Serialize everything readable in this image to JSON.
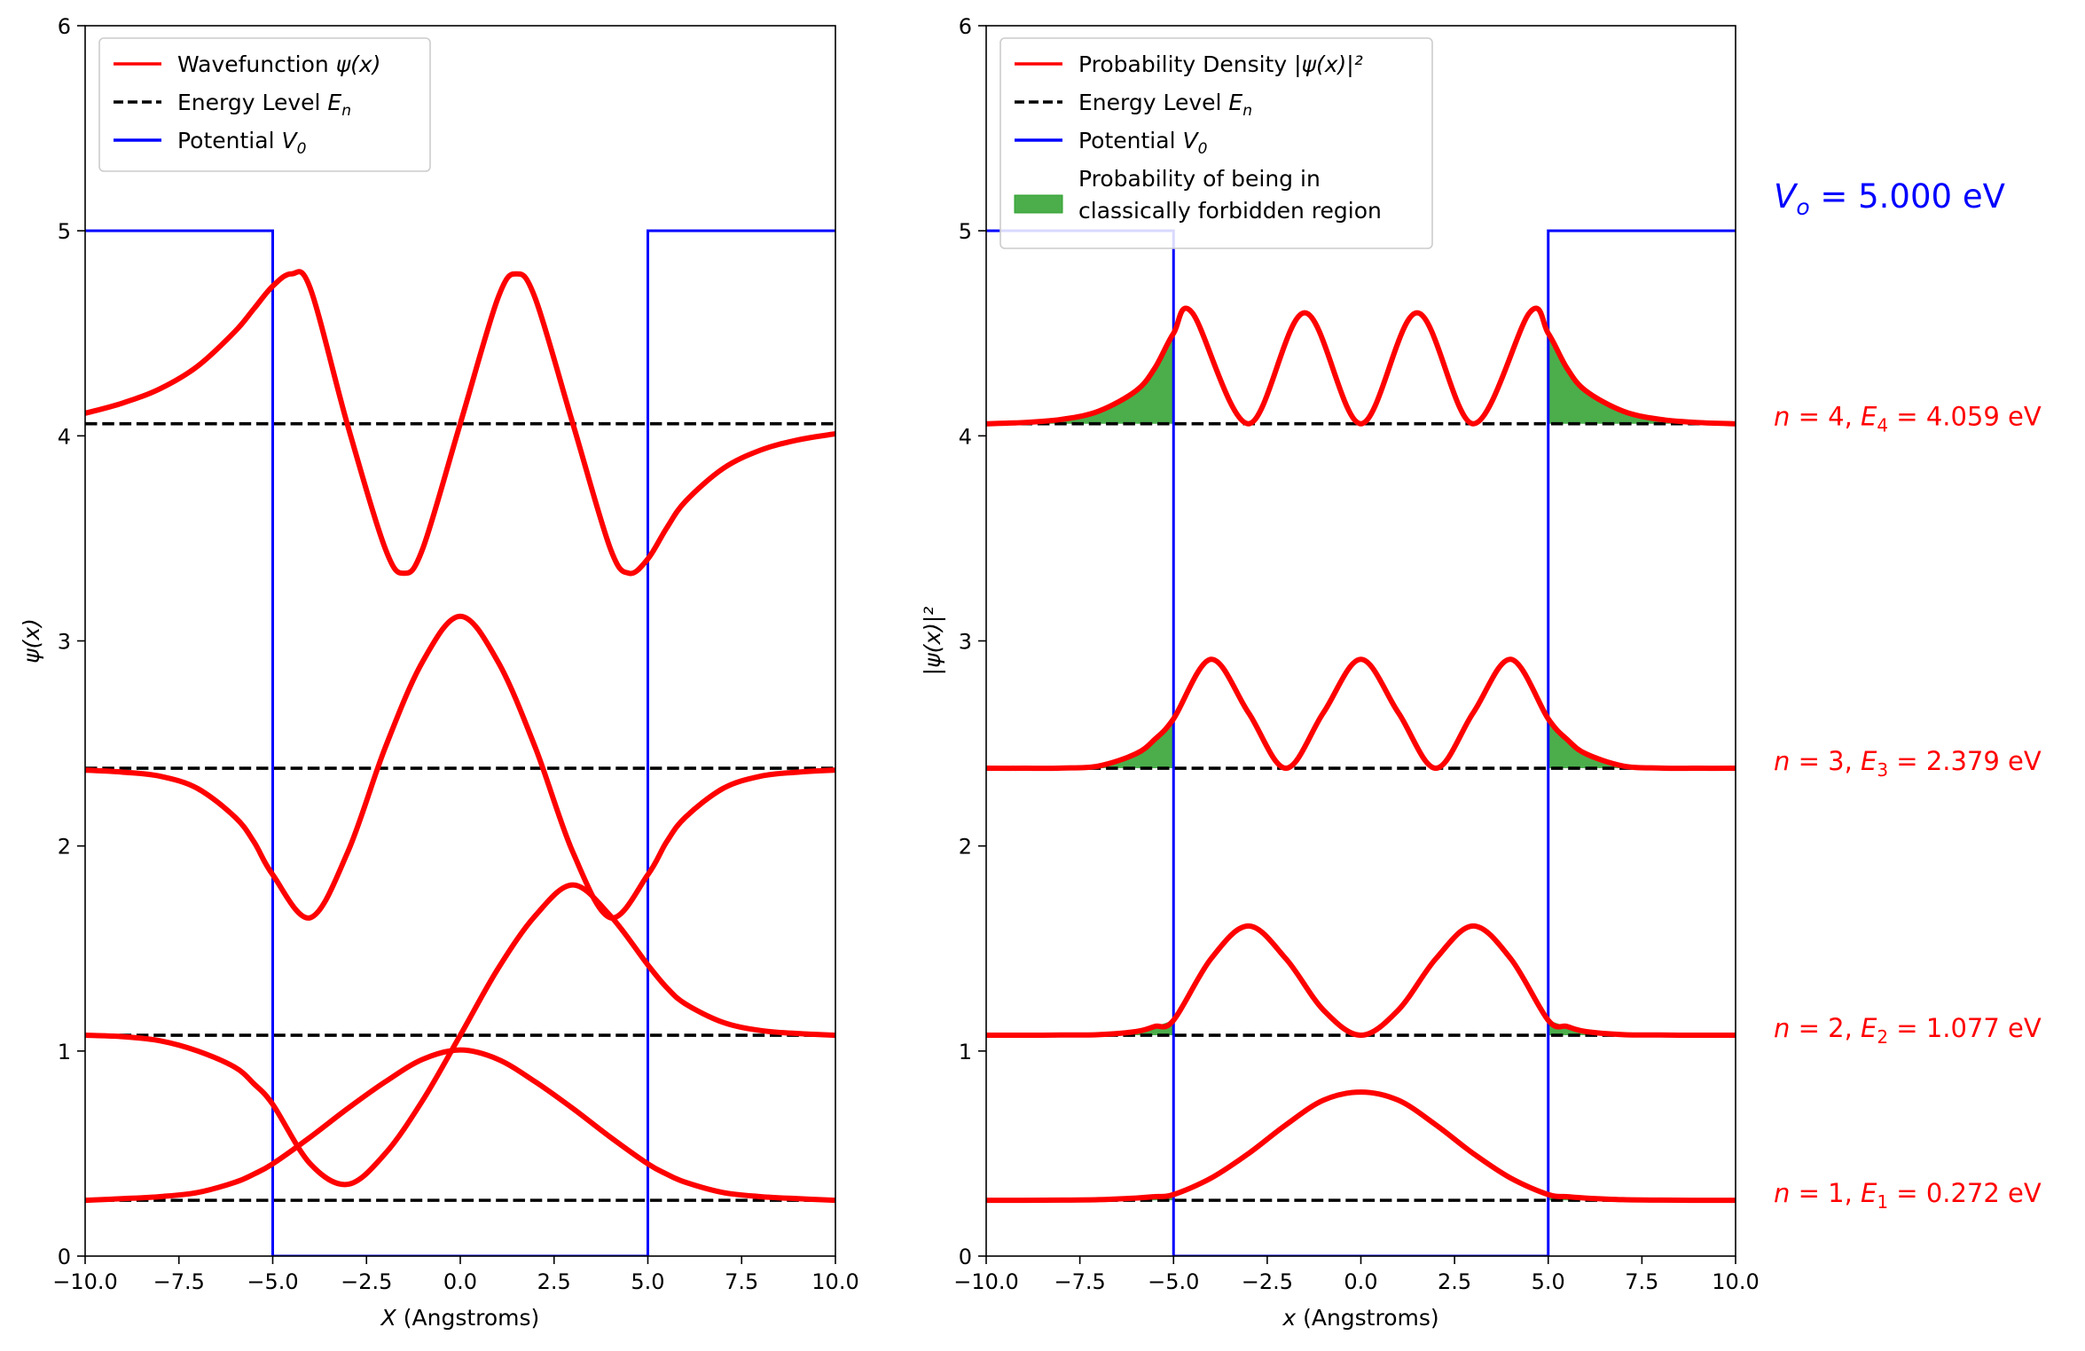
{
  "chart_data": [
    {
      "type": "line",
      "xlabel": "X (Angstroms)",
      "xlabel_italic": "X",
      "xlabel_rest": " (Angstroms)",
      "ylabel": "ψ(x)",
      "xlim": [
        -10,
        10
      ],
      "ylim": [
        0,
        6
      ],
      "xticks": [
        -10,
        -7.5,
        -5,
        -2.5,
        0,
        2.5,
        5,
        7.5,
        10
      ],
      "xtick_labels": [
        "−10.0",
        "−7.5",
        "−5.0",
        "−2.5",
        "0.0",
        "2.5",
        "5.0",
        "7.5",
        "10.0"
      ],
      "yticks": [
        0,
        1,
        2,
        3,
        4,
        5,
        6
      ],
      "ytick_labels": [
        "0",
        "1",
        "2",
        "3",
        "4",
        "5",
        "6"
      ],
      "legend": {
        "placement": "top-left",
        "entries": [
          {
            "label": "Wavefunction ψ(x)",
            "text": "Wavefunction ",
            "math": "ψ(x)",
            "style": "solid",
            "color": "#ff0000"
          },
          {
            "label": "Energy Level E_n",
            "text": "Energy Level ",
            "math": "E",
            "sub": "n",
            "style": "dashed",
            "color": "#000000"
          },
          {
            "label": "Potential V_0",
            "text": "Potential ",
            "math": "V",
            "sub": "0",
            "style": "solid",
            "color": "#0000ff"
          }
        ]
      },
      "potential": {
        "V0": 5.0,
        "well": [
          -5,
          5
        ],
        "color": "#0000ff"
      },
      "energy_levels": [
        0.272,
        1.077,
        2.379,
        4.059
      ],
      "series_color": "#ff0000",
      "series": [
        {
          "n": 1,
          "x": [
            -10,
            -9,
            -8,
            -7,
            -6,
            -5.5,
            -5,
            -4,
            -3,
            -2,
            -1,
            0,
            1,
            2,
            3,
            4,
            5,
            5.5,
            6,
            7,
            8,
            9,
            10
          ],
          "y": [
            0.272,
            0.28,
            0.29,
            0.31,
            0.36,
            0.4,
            0.45,
            0.58,
            0.72,
            0.85,
            0.96,
            1.005,
            0.96,
            0.85,
            0.72,
            0.58,
            0.45,
            0.4,
            0.36,
            0.31,
            0.29,
            0.28,
            0.272
          ]
        },
        {
          "n": 2,
          "x": [
            -10,
            -9,
            -8,
            -7,
            -6,
            -5.5,
            -5,
            -4,
            -3,
            -2,
            -1,
            0,
            1,
            2,
            3,
            4,
            5,
            5.5,
            6,
            7,
            8,
            9,
            10
          ],
          "y": [
            1.077,
            1.07,
            1.05,
            1.0,
            0.92,
            0.84,
            0.74,
            0.45,
            0.35,
            0.5,
            0.76,
            1.077,
            1.4,
            1.66,
            1.81,
            1.66,
            1.42,
            1.31,
            1.23,
            1.14,
            1.1,
            1.085,
            1.077
          ]
        },
        {
          "n": 3,
          "x": [
            -10,
            -9,
            -8,
            -7,
            -6,
            -5.5,
            -5,
            -4,
            -3,
            -2,
            -1,
            0,
            1,
            2,
            3,
            4,
            5,
            5.5,
            6,
            7,
            8,
            9,
            10
          ],
          "y": [
            2.37,
            2.36,
            2.34,
            2.28,
            2.14,
            2.02,
            1.86,
            1.65,
            1.97,
            2.48,
            2.9,
            3.12,
            2.9,
            2.48,
            1.97,
            1.65,
            1.86,
            2.02,
            2.14,
            2.28,
            2.34,
            2.36,
            2.37
          ]
        },
        {
          "n": 4,
          "x": [
            -10,
            -9,
            -8,
            -7,
            -6,
            -5.5,
            -5,
            -4.5,
            -4,
            -3,
            -2,
            -1.5,
            -1,
            0,
            1,
            1.5,
            2,
            3,
            4,
            4.5,
            5,
            5.5,
            6,
            7,
            8,
            9,
            10
          ],
          "y": [
            4.11,
            4.16,
            4.23,
            4.34,
            4.51,
            4.62,
            4.73,
            4.79,
            4.72,
            4.05,
            3.45,
            3.33,
            3.45,
            4.06,
            4.67,
            4.79,
            4.67,
            4.06,
            3.45,
            3.33,
            3.4,
            3.55,
            3.68,
            3.84,
            3.93,
            3.98,
            4.01
          ]
        }
      ]
    },
    {
      "type": "area",
      "xlabel": "x (Angstroms)",
      "xlabel_italic": "x",
      "xlabel_rest": " (Angstroms)",
      "ylabel": "|ψ(x)|²",
      "xlim": [
        -10,
        10
      ],
      "ylim": [
        0,
        6
      ],
      "xticks": [
        -10,
        -7.5,
        -5,
        -2.5,
        0,
        2.5,
        5,
        7.5,
        10
      ],
      "xtick_labels": [
        "−10.0",
        "−7.5",
        "−5.0",
        "−2.5",
        "0.0",
        "2.5",
        "5.0",
        "7.5",
        "10.0"
      ],
      "yticks": [
        0,
        1,
        2,
        3,
        4,
        5,
        6
      ],
      "ytick_labels": [
        "0",
        "1",
        "2",
        "3",
        "4",
        "5",
        "6"
      ],
      "legend": {
        "placement": "top-left",
        "entries": [
          {
            "label": "Probability Density |ψ(x)|²",
            "text": "Probability Density ",
            "math": "|ψ(x)|²",
            "style": "solid",
            "color": "#ff0000"
          },
          {
            "label": "Energy Level E_n",
            "text": "Energy Level ",
            "math": "E",
            "sub": "n",
            "style": "dashed",
            "color": "#000000"
          },
          {
            "label": "Potential V_0",
            "text": "Potential ",
            "math": "V",
            "sub": "0",
            "style": "solid",
            "color": "#0000ff"
          },
          {
            "label": "Probability of being in classically forbidden region",
            "text": "Probability of being in",
            "text2": "classically forbidden region",
            "style": "patch",
            "color": "#2ca02c"
          }
        ]
      },
      "potential": {
        "V0": 5.0,
        "well": [
          -5,
          5
        ],
        "color": "#0000ff"
      },
      "energy_levels": [
        0.272,
        1.077,
        2.379,
        4.059
      ],
      "series_color": "#ff0000",
      "fill_color": "#2ca02c",
      "series": [
        {
          "n": 1,
          "amplitude": 0.53,
          "x": [
            -10,
            -9,
            -8,
            -7,
            -6,
            -5.5,
            -5,
            -4,
            -3,
            -2,
            -1,
            0,
            1,
            2,
            3,
            4,
            5,
            5.5,
            6,
            7,
            8,
            9,
            10
          ],
          "y": [
            0.272,
            0.272,
            0.273,
            0.275,
            0.283,
            0.29,
            0.3,
            0.38,
            0.5,
            0.64,
            0.76,
            0.8,
            0.76,
            0.64,
            0.5,
            0.38,
            0.3,
            0.29,
            0.283,
            0.275,
            0.273,
            0.272,
            0.272
          ]
        },
        {
          "n": 2,
          "amplitude": 0.54,
          "x": [
            -10,
            -9,
            -8,
            -7,
            -6,
            -5.5,
            -5,
            -4,
            -3,
            -2,
            -1,
            0,
            1,
            2,
            3,
            4,
            5,
            5.5,
            6,
            7,
            8,
            9,
            10
          ],
          "y": [
            1.077,
            1.077,
            1.078,
            1.08,
            1.095,
            1.12,
            1.15,
            1.45,
            1.61,
            1.45,
            1.2,
            1.077,
            1.2,
            1.45,
            1.61,
            1.45,
            1.15,
            1.12,
            1.095,
            1.08,
            1.078,
            1.077,
            1.077
          ]
        },
        {
          "n": 3,
          "amplitude": 0.54,
          "x": [
            -10,
            -9,
            -8,
            -7,
            -6,
            -5.5,
            -5,
            -4,
            -3,
            -2,
            -1,
            0,
            1,
            2,
            3,
            4,
            5,
            5.5,
            6,
            7,
            8,
            9,
            10
          ],
          "y": [
            2.379,
            2.379,
            2.38,
            2.39,
            2.45,
            2.52,
            2.62,
            2.91,
            2.65,
            2.379,
            2.65,
            2.91,
            2.65,
            2.379,
            2.65,
            2.91,
            2.62,
            2.52,
            2.45,
            2.39,
            2.38,
            2.379,
            2.379
          ]
        },
        {
          "n": 4,
          "amplitude": 0.54,
          "x": [
            -10,
            -9,
            -8,
            -7,
            -6,
            -5.5,
            -5,
            -4.5,
            -3,
            -1.5,
            0,
            1.5,
            3,
            4.5,
            5,
            5.5,
            6,
            7,
            8,
            9,
            10
          ],
          "y": [
            4.059,
            4.065,
            4.08,
            4.12,
            4.22,
            4.33,
            4.5,
            4.6,
            4.059,
            4.6,
            4.059,
            4.6,
            4.059,
            4.6,
            4.5,
            4.33,
            4.22,
            4.12,
            4.08,
            4.065,
            4.059
          ]
        }
      ]
    }
  ],
  "annotations": {
    "v0": {
      "math": "V",
      "sub": "o",
      "rest": " = 5.000 eV",
      "color": "#0000ff"
    },
    "levels": [
      {
        "n_label": "n",
        "n_value": " = 4, ",
        "e_label": "E",
        "e_sub": "4",
        "e_rest": " = 4.059 eV",
        "y": 4.059,
        "color": "#ff0000"
      },
      {
        "n_label": "n",
        "n_value": " = 3, ",
        "e_label": "E",
        "e_sub": "3",
        "e_rest": " = 2.379 eV",
        "y": 2.379,
        "color": "#ff0000"
      },
      {
        "n_label": "n",
        "n_value": " = 2, ",
        "e_label": "E",
        "e_sub": "2",
        "e_rest": " = 1.077 eV",
        "y": 1.077,
        "color": "#ff0000"
      },
      {
        "n_label": "n",
        "n_value": " = 1, ",
        "e_label": "E",
        "e_sub": "1",
        "e_rest": " = 0.272 eV",
        "y": 0.272,
        "color": "#ff0000"
      }
    ]
  }
}
